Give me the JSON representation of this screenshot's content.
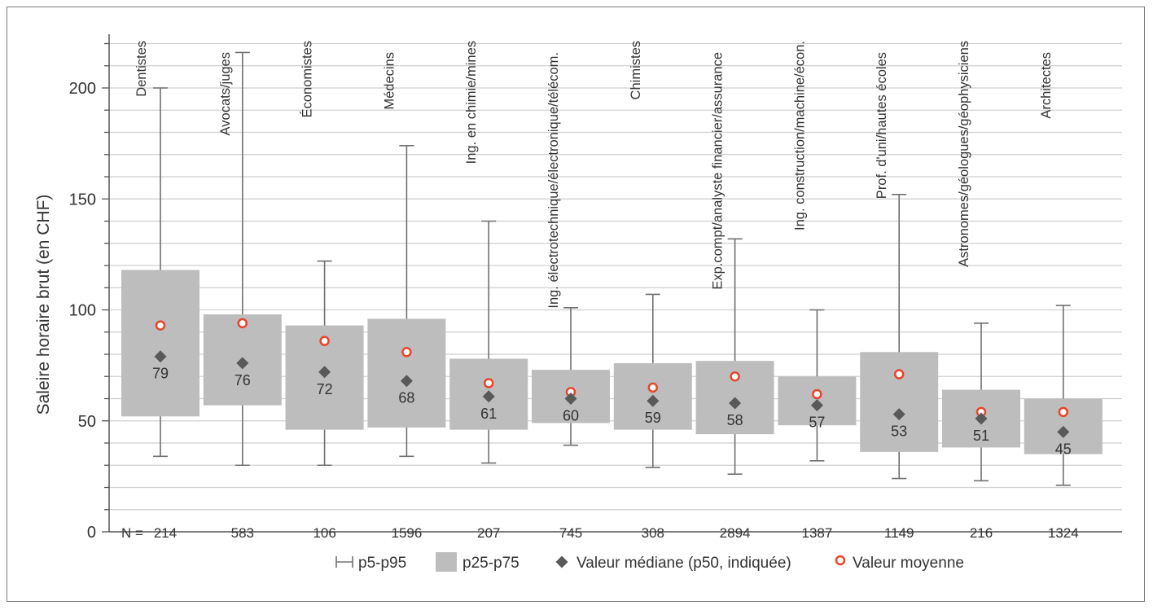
{
  "chart_data": {
    "type": "box",
    "ylabel": "Saleire horaire brut (en CHF)",
    "xlabel": "",
    "ylim": [
      0,
      220
    ],
    "yticks": [
      0,
      50,
      100,
      150,
      200
    ],
    "grid": true,
    "n_prefix": "N =",
    "categories": [
      "Dentistes",
      "Avocats/juges",
      "Économistes",
      "Médecins",
      "Ing. en chimie/mines",
      "Ing. électrotechnique/électronique/télécom.",
      "Chimistes",
      "Exp.compt/analyste financier/assurance",
      "Ing. construction/machine/écon.",
      "Prof. d'uni/hautes écoles",
      "Astronomes/géologues/géophysiciens",
      "Architectes"
    ],
    "p5": [
      34,
      30,
      30,
      34,
      31,
      39,
      29,
      26,
      32,
      24,
      23,
      21
    ],
    "p25": [
      52,
      57,
      46,
      47,
      46,
      49,
      46,
      44,
      48,
      36,
      38,
      35
    ],
    "p50": [
      79,
      76,
      72,
      68,
      61,
      60,
      59,
      58,
      57,
      53,
      51,
      45
    ],
    "p75": [
      118,
      98,
      93,
      96,
      78,
      73,
      76,
      77,
      70,
      81,
      64,
      60
    ],
    "p95": [
      200,
      216,
      122,
      174,
      140,
      101,
      107,
      132,
      100,
      152,
      94,
      102
    ],
    "mean": [
      93,
      94,
      86,
      81,
      67,
      63,
      65,
      70,
      62,
      71,
      54,
      54
    ],
    "n": [
      "214",
      "583",
      "106",
      "1596",
      "207",
      "745",
      "308",
      "2894",
      "1387",
      "1149",
      "216",
      "1324"
    ],
    "median_labels": [
      "79",
      "76",
      "72",
      "68",
      "61",
      "60",
      "59",
      "58",
      "57",
      "53",
      "51",
      "45"
    ],
    "colors": {
      "box": "#bdbdbd",
      "whisker": "#707070",
      "median": "#595959",
      "mean_stroke": "#e8442a",
      "grid": "#cfcfcf"
    },
    "legend": {
      "position": "bottom",
      "items": [
        "p5-p95",
        "p25-p75",
        "Valeur médiane (p50, indiquée)",
        "Valeur moyenne"
      ]
    }
  }
}
